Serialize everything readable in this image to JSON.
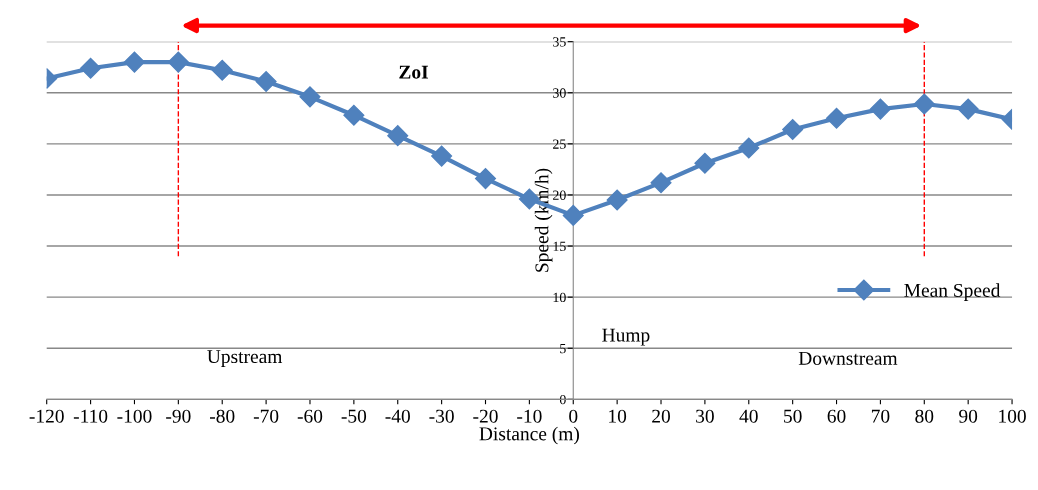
{
  "chart_data": {
    "type": "line",
    "xlabel": "Distance (m)",
    "ylabel": "Speed (km/h)",
    "x": [
      -120,
      -110,
      -100,
      -90,
      -80,
      -70,
      -60,
      -50,
      -40,
      -30,
      -20,
      -10,
      0,
      10,
      20,
      30,
      40,
      50,
      60,
      70,
      80,
      90,
      100
    ],
    "series": [
      {
        "name": "Mean Speed",
        "color": "#4f81bd",
        "values": [
          31.4,
          32.4,
          33.0,
          33.0,
          32.2,
          31.1,
          29.6,
          27.8,
          25.8,
          23.8,
          21.6,
          19.6,
          18.0,
          19.5,
          21.2,
          23.1,
          24.6,
          26.4,
          27.5,
          28.4,
          28.9,
          28.4,
          27.4
        ]
      }
    ],
    "xlim": [
      -120,
      100
    ],
    "xticks": [
      -120,
      -110,
      -100,
      -90,
      -80,
      -70,
      -60,
      -50,
      -40,
      -30,
      -20,
      -10,
      0,
      10,
      20,
      30,
      40,
      50,
      60,
      70,
      80,
      90,
      100
    ],
    "ylim": [
      0,
      35
    ],
    "yticks": [
      0,
      5,
      10,
      15,
      20,
      25,
      30,
      35
    ],
    "grid": "y",
    "legend": "right",
    "marker": "diamond",
    "line_style": "solid",
    "ref_lines": [
      {
        "axis": "x",
        "value": -90,
        "color": "#ff0000",
        "line_style": "dashed"
      },
      {
        "axis": "x",
        "value": 80,
        "color": "#ff0000",
        "line_style": "dashed"
      }
    ],
    "annotations": [
      "ZoI",
      "Upstream",
      "Hump",
      "Downstream"
    ]
  }
}
